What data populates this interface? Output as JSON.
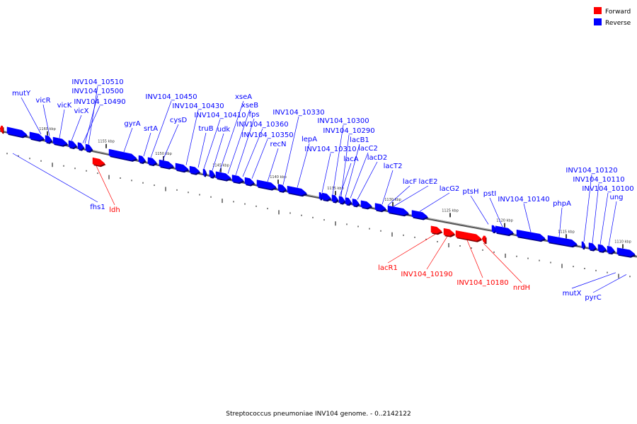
{
  "caption": "Streptococcus pneumoniae INV104 genome. - 0..2142122",
  "colors": {
    "forward": "#ff0000",
    "reverse": "#0000ff",
    "backbone": "#888888"
  },
  "legend": [
    {
      "label": "Forward",
      "color": "#ff0000"
    },
    {
      "label": "Reverse",
      "color": "#0000ff"
    }
  ],
  "tick_labels": [
    "1160 kbp",
    "1155 kbp",
    "1150 kbp",
    "1145 kbp",
    "1140 kbp",
    "1135 kbp",
    "1130 kbp",
    "1125 kbp",
    "1120 kbp",
    "1115 kbp",
    "1110 kbp"
  ],
  "reverse_genes": [
    "mutY",
    "vicR",
    "vicK",
    "vicX",
    "INV104_10490",
    "INV104_10500",
    "INV104_10510",
    "gyrA",
    "srtA",
    "INV104_10450",
    "cysD",
    "INV104_10430",
    "truB",
    "INV104_10410",
    "udk",
    "xseA",
    "xseB",
    "fps",
    "INV104_10360",
    "INV104_10350",
    "recN",
    "INV104_10330",
    "lepA",
    "INV104_10310",
    "INV104_10300",
    "lacA",
    "INV104_10290",
    "lacB1",
    "lacC2",
    "lacD2",
    "lacT2",
    "lacF",
    "lacE2",
    "lacG2",
    "ptsH",
    "pstI",
    "INV104_10140",
    "phpA",
    "INV104_10120",
    "INV104_10110",
    "INV104_10100",
    "ung"
  ],
  "reverse_genes_below": [
    "fhs1",
    "mutX",
    "pyrC"
  ],
  "forward_genes": [
    "ldh",
    "lacR1",
    "INV104_10190",
    "INV104_10180",
    "nrdH"
  ]
}
